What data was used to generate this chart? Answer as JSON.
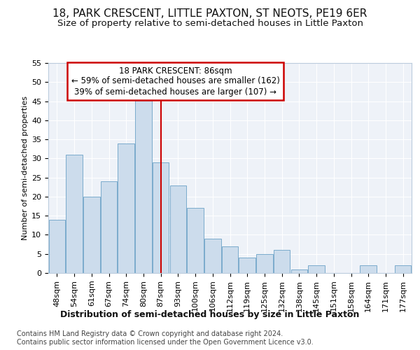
{
  "title": "18, PARK CRESCENT, LITTLE PAXTON, ST NEOTS, PE19 6ER",
  "subtitle": "Size of property relative to semi-detached houses in Little Paxton",
  "xlabel": "Distribution of semi-detached houses by size in Little Paxton",
  "ylabel": "Number of semi-detached properties",
  "categories": [
    "48sqm",
    "54sqm",
    "61sqm",
    "67sqm",
    "74sqm",
    "80sqm",
    "87sqm",
    "93sqm",
    "100sqm",
    "106sqm",
    "112sqm",
    "119sqm",
    "125sqm",
    "132sqm",
    "138sqm",
    "145sqm",
    "151sqm",
    "158sqm",
    "164sqm",
    "171sqm",
    "177sqm"
  ],
  "values": [
    14,
    31,
    20,
    24,
    34,
    46,
    29,
    23,
    17,
    9,
    7,
    4,
    5,
    6,
    1,
    2,
    0,
    0,
    2,
    0,
    2
  ],
  "bar_color": "#ccdcec",
  "bar_edge_color": "#7aabcc",
  "highlight_index": 6,
  "highlight_line_color": "#cc0000",
  "annotation_line1": "18 PARK CRESCENT: 86sqm",
  "annotation_line2": "← 59% of semi-detached houses are smaller (162)",
  "annotation_line3": "39% of semi-detached houses are larger (107) →",
  "annotation_box_color": "#cc0000",
  "background_color": "#eef2f8",
  "footer_line1": "Contains HM Land Registry data © Crown copyright and database right 2024.",
  "footer_line2": "Contains public sector information licensed under the Open Government Licence v3.0.",
  "ylim": [
    0,
    55
  ],
  "yticks": [
    0,
    5,
    10,
    15,
    20,
    25,
    30,
    35,
    40,
    45,
    50,
    55
  ],
  "grid_color": "#ffffff",
  "title_fontsize": 11,
  "subtitle_fontsize": 9.5,
  "ylabel_fontsize": 8,
  "xlabel_fontsize": 9,
  "tick_fontsize": 8,
  "annotation_fontsize": 8.5,
  "footer_fontsize": 7
}
